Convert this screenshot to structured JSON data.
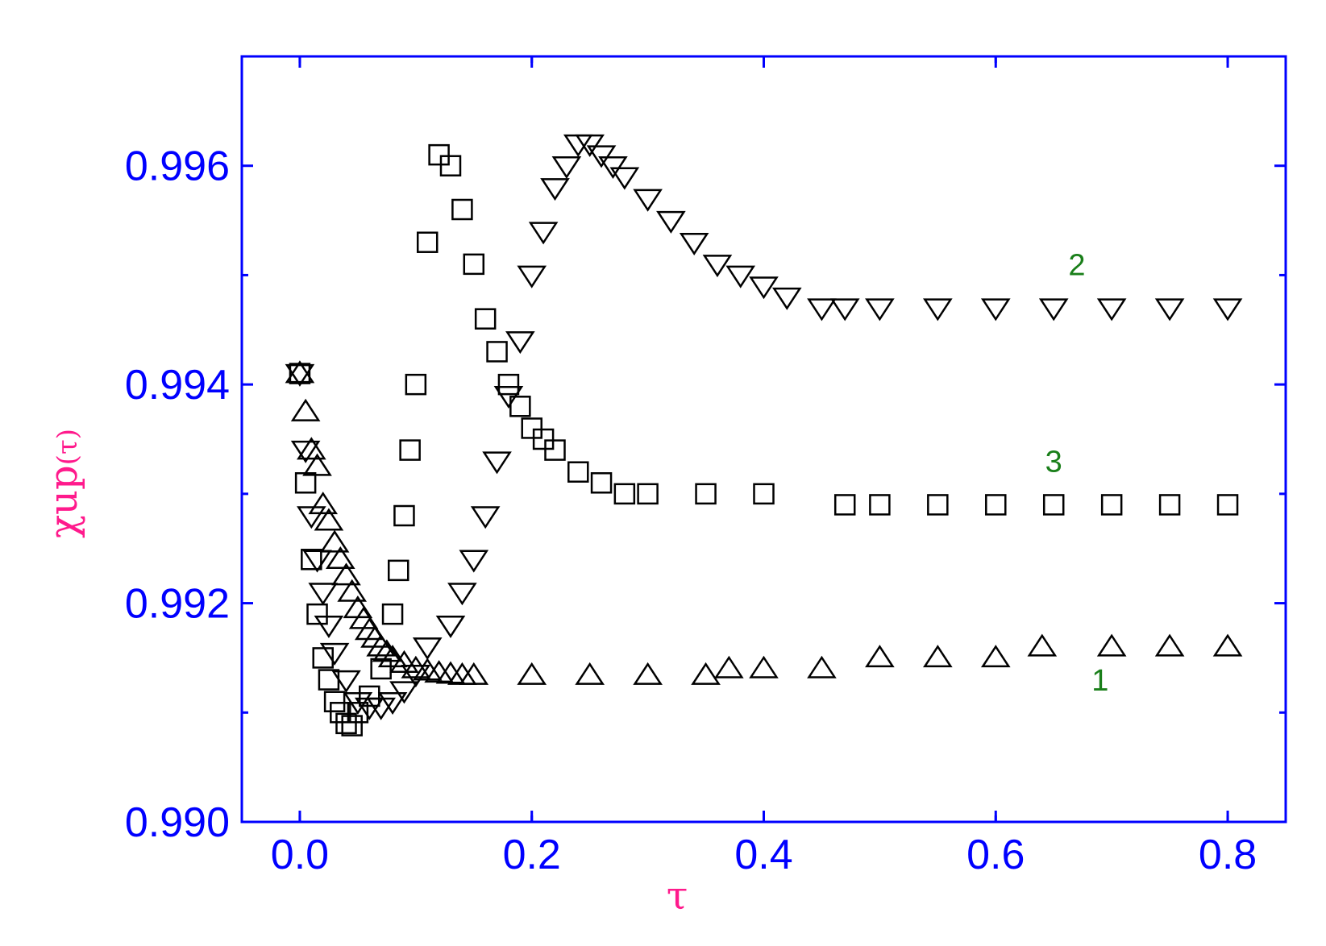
{
  "chart_data": {
    "type": "scatter",
    "xlabel": "τ",
    "ylabel_main": "χup",
    "ylabel_arg": "(τ)",
    "xlim": [
      -0.05,
      0.85
    ],
    "ylim": [
      0.99,
      0.997
    ],
    "xticks": [
      "0.0",
      "0.2",
      "0.4",
      "0.6",
      "0.8"
    ],
    "xtick_values": [
      0.0,
      0.2,
      0.4,
      0.6,
      0.8
    ],
    "yticks": [
      "0.990",
      "0.992",
      "0.994",
      "0.996"
    ],
    "ytick_values": [
      0.99,
      0.992,
      0.994,
      0.996
    ],
    "grid": false,
    "colors": {
      "axis": "#0000ff",
      "axis_title": "#ff1a8c",
      "curve_label": "#1a7f1a",
      "marker": "#000000"
    },
    "series": [
      {
        "label": "1",
        "marker": "triangle-up",
        "x": [
          0.0,
          0.005,
          0.01,
          0.015,
          0.02,
          0.025,
          0.03,
          0.035,
          0.04,
          0.045,
          0.05,
          0.055,
          0.06,
          0.065,
          0.07,
          0.075,
          0.08,
          0.09,
          0.1,
          0.11,
          0.12,
          0.13,
          0.14,
          0.15,
          0.2,
          0.25,
          0.3,
          0.35,
          0.37,
          0.4,
          0.45,
          0.5,
          0.55,
          0.6,
          0.64,
          0.7,
          0.75,
          0.8
        ],
        "y": [
          0.9941,
          0.99375,
          0.9934,
          0.99325,
          0.9929,
          0.99275,
          0.99255,
          0.9924,
          0.99225,
          0.9921,
          0.99195,
          0.99185,
          0.99175,
          0.99168,
          0.9916,
          0.99155,
          0.9915,
          0.99145,
          0.9914,
          0.99138,
          0.99136,
          0.99135,
          0.99134,
          0.99134,
          0.99134,
          0.99134,
          0.99134,
          0.99134,
          0.9914,
          0.9914,
          0.9914,
          0.9915,
          0.9915,
          0.9915,
          0.9916,
          0.9916,
          0.9916,
          0.9916
        ]
      },
      {
        "label": "2",
        "marker": "triangle-down",
        "x": [
          0.0,
          0.005,
          0.01,
          0.015,
          0.02,
          0.025,
          0.03,
          0.04,
          0.05,
          0.06,
          0.07,
          0.08,
          0.09,
          0.1,
          0.11,
          0.13,
          0.14,
          0.15,
          0.16,
          0.17,
          0.18,
          0.19,
          0.2,
          0.21,
          0.22,
          0.23,
          0.24,
          0.25,
          0.26,
          0.27,
          0.28,
          0.3,
          0.32,
          0.34,
          0.36,
          0.38,
          0.4,
          0.42,
          0.45,
          0.47,
          0.5,
          0.55,
          0.6,
          0.65,
          0.7,
          0.75,
          0.8
        ],
        "y": [
          0.9941,
          0.9934,
          0.9928,
          0.9924,
          0.9921,
          0.9918,
          0.99155,
          0.9913,
          0.9911,
          0.99105,
          0.99105,
          0.9911,
          0.9912,
          0.99135,
          0.9916,
          0.9918,
          0.9921,
          0.9924,
          0.9928,
          0.9933,
          0.9939,
          0.9944,
          0.995,
          0.9954,
          0.9958,
          0.996,
          0.9962,
          0.9962,
          0.9961,
          0.996,
          0.9959,
          0.9957,
          0.9955,
          0.9953,
          0.9951,
          0.995,
          0.9949,
          0.9948,
          0.9947,
          0.9947,
          0.9947,
          0.9947,
          0.9947,
          0.9947,
          0.9947,
          0.9947,
          0.9947
        ]
      },
      {
        "label": "3",
        "marker": "square",
        "x": [
          0.0,
          0.005,
          0.01,
          0.015,
          0.02,
          0.025,
          0.03,
          0.035,
          0.04,
          0.045,
          0.05,
          0.06,
          0.07,
          0.08,
          0.085,
          0.09,
          0.095,
          0.1,
          0.11,
          0.12,
          0.13,
          0.14,
          0.15,
          0.16,
          0.17,
          0.18,
          0.19,
          0.2,
          0.21,
          0.22,
          0.24,
          0.26,
          0.28,
          0.3,
          0.35,
          0.4,
          0.47,
          0.5,
          0.55,
          0.6,
          0.65,
          0.7,
          0.75,
          0.8
        ],
        "y": [
          0.9941,
          0.9931,
          0.9924,
          0.9919,
          0.9915,
          0.9913,
          0.9911,
          0.991,
          0.9909,
          0.99088,
          0.991,
          0.99115,
          0.9914,
          0.9919,
          0.9923,
          0.9928,
          0.9934,
          0.994,
          0.9953,
          0.9961,
          0.996,
          0.9956,
          0.9951,
          0.9946,
          0.9943,
          0.994,
          0.9938,
          0.9936,
          0.9935,
          0.9934,
          0.9932,
          0.9931,
          0.993,
          0.993,
          0.993,
          0.993,
          0.9929,
          0.9929,
          0.9929,
          0.9929,
          0.9929,
          0.9929,
          0.9929,
          0.9929
        ]
      }
    ],
    "annotations": [
      {
        "text": "2",
        "x": 0.67,
        "y": 0.995
      },
      {
        "text": "3",
        "x": 0.65,
        "y": 0.9932
      },
      {
        "text": "1",
        "x": 0.69,
        "y": 0.9912
      }
    ]
  }
}
